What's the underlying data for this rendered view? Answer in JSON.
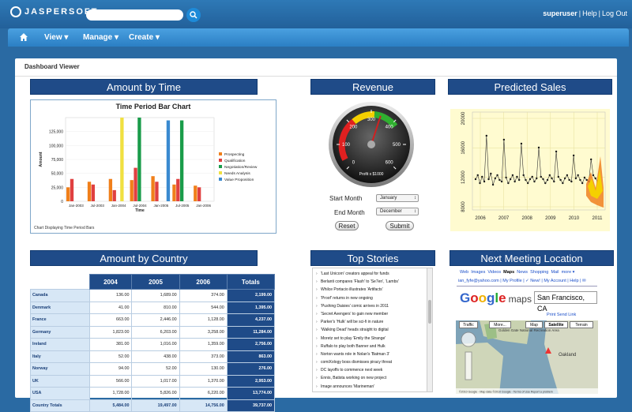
{
  "header": {
    "logo_text": "JASPERSOFT",
    "search_placeholder": "",
    "search_icon": "search-icon",
    "user": "superuser",
    "help": "Help",
    "logout": "Log Out"
  },
  "nav": {
    "home_icon": "home-icon",
    "view": "View",
    "manage": "Manage",
    "create": "Create"
  },
  "panel": {
    "title": "Dashboard Viewer"
  },
  "widgets": {
    "amount_by_time": "Amount by Time",
    "revenue": "Revenue",
    "predicted_sales": "Predicted Sales",
    "amount_by_country": "Amount by Country",
    "top_stories": "Top Stories",
    "next_meeting": "Next Meeting Location"
  },
  "time_chart": {
    "title": "Time Period Bar Chart",
    "xlabel": "Time",
    "ylabel": "Amount",
    "footer": "Chart Displaying Time Period Bars",
    "ticks_y": [
      "125,000",
      "100,000",
      "75,000",
      "50,000",
      "25,000",
      "0"
    ],
    "ticks_x": [
      "Jan-2003",
      "Jul-2003",
      "Jan-2004",
      "Jul-2004",
      "Jan-2005",
      "Jul-2005",
      "Jan-2006"
    ],
    "legend": [
      "Prospecting",
      "Qualification",
      "Negotiation/Review",
      "Needs Analysis",
      "Value Proposition"
    ],
    "legend_colors": [
      "#f07f1a",
      "#e04040",
      "#1a9c4a",
      "#f0e040",
      "#3a8ad0"
    ]
  },
  "chart_data": {
    "type": "bar",
    "title": "Time Period Bar Chart",
    "xlabel": "Time",
    "ylabel": "Amount",
    "ylim": [
      0,
      150000
    ],
    "series": [
      {
        "name": "Prospecting",
        "color": "#f07f1a",
        "values": [
          25000,
          35000,
          40000,
          38000,
          45000,
          30000,
          28000
        ]
      },
      {
        "name": "Qualification",
        "color": "#e04040",
        "values": [
          40000,
          30000,
          20000,
          60000,
          35000,
          40000,
          25000
        ]
      },
      {
        "name": "Negotiation/Review",
        "color": "#1a9c4a",
        "values": [
          0,
          0,
          0,
          150000,
          0,
          145000,
          0
        ]
      },
      {
        "name": "Needs Analysis",
        "color": "#f0e040",
        "values": [
          0,
          0,
          150000,
          0,
          0,
          0,
          0
        ]
      },
      {
        "name": "Value Proposition",
        "color": "#3a8ad0",
        "values": [
          0,
          0,
          0,
          0,
          145000,
          0,
          0
        ]
      }
    ]
  },
  "revenue": {
    "gauge_ticks": [
      "0",
      "100",
      "200",
      "300",
      "400",
      "500",
      "600"
    ],
    "gauge_label": "Profit x $1000",
    "gauge_value": 340,
    "start_month_label": "Start Month",
    "start_month_value": "January",
    "end_month_label": "End Month",
    "end_month_value": "December",
    "reset": "Reset",
    "submit": "Submit"
  },
  "predicted": {
    "y_ticks": [
      "20000",
      "16000",
      "12000",
      "8000"
    ],
    "x_ticks": [
      "2006",
      "2007",
      "2008",
      "2009",
      "2010",
      "2011"
    ]
  },
  "country_table": {
    "headers": [
      "",
      "2004",
      "2005",
      "2006",
      "Totals"
    ],
    "rows": [
      [
        "Canada",
        "136.00",
        "1,689.00",
        "374.00",
        "2,199.00"
      ],
      [
        "Denmark",
        "41.00",
        "810.00",
        "544.00",
        "1,395.00"
      ],
      [
        "France",
        "663.00",
        "2,446.00",
        "1,128.00",
        "4,237.00"
      ],
      [
        "Germany",
        "1,823.00",
        "6,203.00",
        "3,258.00",
        "11,284.00"
      ],
      [
        "Ireland",
        "381.00",
        "1,016.00",
        "1,359.00",
        "2,756.00"
      ],
      [
        "Italy",
        "52.00",
        "438.00",
        "373.00",
        "863.00"
      ],
      [
        "Norway",
        "94.00",
        "52.00",
        "130.00",
        "276.00"
      ],
      [
        "UK",
        "566.00",
        "1,017.00",
        "1,370.00",
        "2,953.00"
      ],
      [
        "USA",
        "1,728.00",
        "5,826.00",
        "6,220.00",
        "13,774.00"
      ]
    ],
    "totals": [
      "Country Totals",
      "5,484.00",
      "19,497.00",
      "14,756.00",
      "39,737.00"
    ]
  },
  "stories": [
    "'Last Unicorn' creators appeal for funds",
    "Berlanti compares 'Flash' to 'Se7en', 'Lambs'",
    "Whilce Portacio illustrates 'Artifacts'",
    "'Proof' returns in new ongoing",
    "'Pushing Daisies' comic arrives in 2011",
    "'Secret Avengers' to gain new member",
    "Parker's 'Hulk' will be sci-fi in nature",
    "'Walking Dead' heads straight to digital",
    "Moretz set to play 'Emily the Strange'",
    "Ruffalo to play both Banner and Hulk",
    "Norton wants role in Nolan's 'Batman 3'",
    "comiXology boss dismisses piracy threat",
    "DC layoffs to commence next week",
    "Ennis, Batista working on new project",
    "Image announces 'Marineman'"
  ],
  "map": {
    "links": [
      "Web",
      "Images",
      "Videos",
      "Maps",
      "News",
      "Shopping",
      "Mail",
      "more ▾"
    ],
    "user_line": "ian_fyfe@yahoo.com | My Profile | ✓ New! | My Account | Help | ✉",
    "google": "Google",
    "maps": "maps",
    "search_value": "San Francisco, CA",
    "tools": "Print  Send  Link",
    "tabs": [
      "Traffic",
      "More...",
      "Map",
      "Satellite",
      "Terrain"
    ],
    "place_label": "Golden Gate National Recreation Area",
    "oakland": "Oakland",
    "footer": "©2010 Google - Map data ©2010 Google - Terms of Use  Report a problem"
  },
  "colors": {
    "header": "#2a6aa3",
    "widget_title": "#1f4b88",
    "accent": "#1d8ad8"
  }
}
